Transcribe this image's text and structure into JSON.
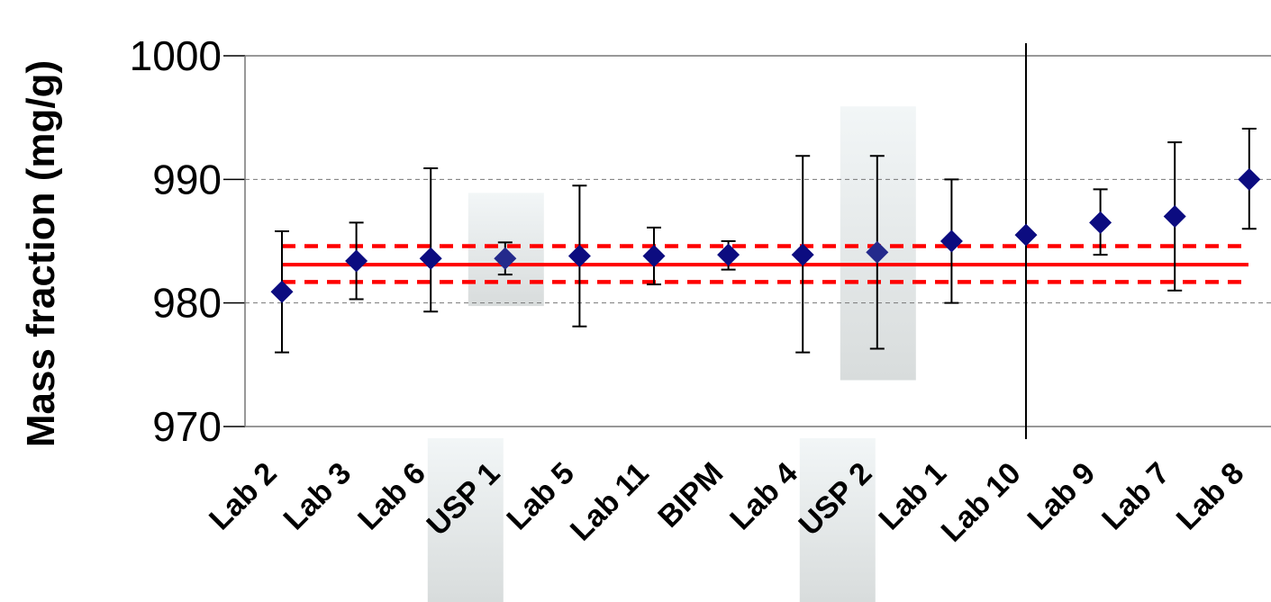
{
  "chart_data": {
    "type": "scatter",
    "ylabel": "Mass fraction (mg/g)",
    "xlabel": "",
    "ylim": [
      970,
      1000
    ],
    "y_ticks": [
      970,
      980,
      990,
      1000
    ],
    "grid": "horizontal dashed",
    "categories": [
      "Lab 2",
      "Lab 3",
      "Lab 6",
      "USP 1",
      "Lab 5",
      "Lab 11",
      "BIPM",
      "Lab 4",
      "USP 2",
      "Lab 1",
      "Lab 10",
      "Lab 9",
      "Lab 7",
      "Lab 8"
    ],
    "values": [
      980.9,
      983.4,
      983.6,
      983.6,
      983.8,
      983.8,
      983.9,
      983.9,
      984.1,
      985.0,
      985.5,
      986.5,
      987.0,
      990.0
    ],
    "error_low": [
      976.0,
      980.3,
      979.3,
      982.3,
      978.1,
      981.5,
      982.7,
      976.0,
      976.3,
      980.0,
      null,
      983.9,
      981.0,
      986.0
    ],
    "error_high": [
      985.8,
      986.5,
      990.9,
      984.9,
      989.5,
      986.1,
      985.0,
      991.9,
      991.9,
      990.0,
      null,
      989.2,
      993.0,
      994.1
    ],
    "highlighted": [
      "USP 1",
      "USP 2"
    ],
    "reference_value": 983.1,
    "reference_interval": [
      981.7,
      984.6
    ],
    "colors": {
      "marker": "#0c0c80",
      "reference": "#ff0000",
      "error_bar": "#000000",
      "highlight": "#e4eaea"
    }
  }
}
